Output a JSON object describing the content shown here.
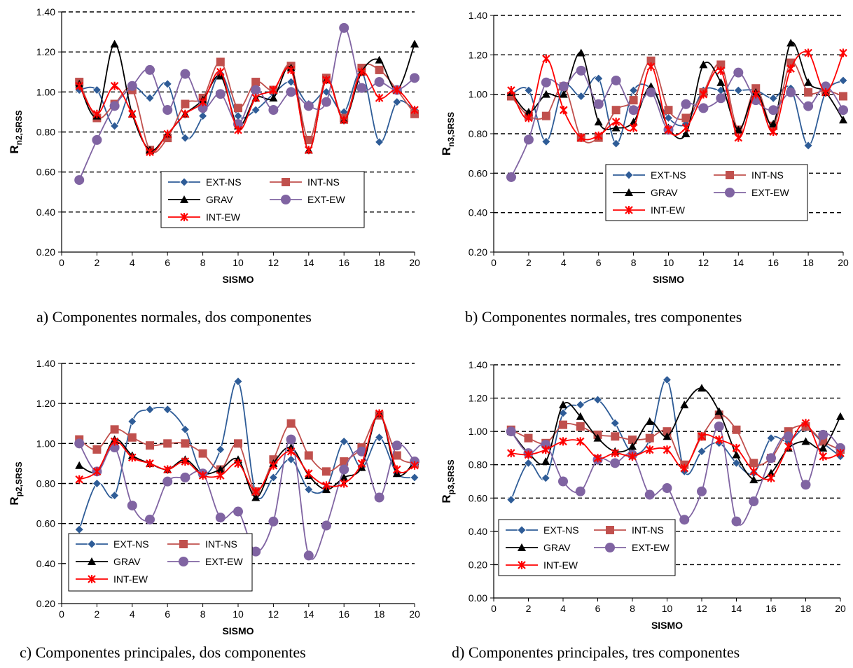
{
  "colors": {
    "EXT-NS": "#2E5C97",
    "INT-NS": "#C0504D",
    "GRAV": "#000000",
    "EXT-EW": "#8064A2",
    "INT-EW": "#FF0000"
  },
  "chart_data": [
    {
      "type": "line",
      "caption": "a) Componentes normales, dos componentes",
      "xlabel": "SISMO",
      "ylabel_main": "R",
      "ylabel_sub": "n2,SRSS",
      "xlim": [
        0,
        20
      ],
      "xticks": [
        "0",
        "2",
        "4",
        "6",
        "8",
        "10",
        "12",
        "14",
        "16",
        "18",
        "20"
      ],
      "ylim": [
        0.2,
        1.4
      ],
      "yticks": [
        "0.20",
        "0.40",
        "0.60",
        "0.80",
        "1.00",
        "1.20",
        "1.40"
      ],
      "legend_layout": "grid",
      "x": [
        1,
        2,
        3,
        4,
        5,
        6,
        7,
        8,
        9,
        10,
        11,
        12,
        13,
        14,
        15,
        16,
        17,
        18,
        19,
        20
      ],
      "series": [
        {
          "name": "EXT-NS",
          "marker": "diamond",
          "values": [
            1.01,
            1.01,
            0.83,
            1.02,
            0.97,
            1.04,
            0.77,
            0.88,
            1.09,
            0.88,
            0.91,
            0.99,
            1.05,
            0.94,
            1.0,
            0.9,
            1.1,
            0.75,
            0.95,
            0.91
          ]
        },
        {
          "name": "INT-NS",
          "marker": "square",
          "values": [
            1.05,
            0.87,
            0.94,
            1.01,
            0.71,
            0.77,
            0.94,
            0.97,
            1.15,
            0.92,
            1.05,
            1.01,
            1.13,
            0.76,
            1.07,
            0.87,
            1.12,
            1.11,
            1.01,
            0.89
          ]
        },
        {
          "name": "GRAV",
          "marker": "triangle",
          "values": [
            1.04,
            0.88,
            1.24,
            0.89,
            0.71,
            0.79,
            0.89,
            0.96,
            1.08,
            0.83,
            0.97,
            0.97,
            1.12,
            0.71,
            1.06,
            0.86,
            1.1,
            1.16,
            1.01,
            1.24
          ]
        },
        {
          "name": "EXT-EW",
          "marker": "circle",
          "values": [
            0.56,
            0.76,
            0.93,
            1.03,
            1.11,
            0.91,
            1.09,
            0.92,
            0.99,
            0.84,
            1.01,
            0.91,
            1.0,
            0.93,
            0.95,
            1.32,
            1.02,
            1.05,
            1.01,
            1.07
          ]
        },
        {
          "name": "INT-EW",
          "marker": "star",
          "values": [
            1.03,
            0.89,
            1.03,
            0.89,
            0.7,
            0.79,
            0.89,
            0.95,
            1.1,
            0.81,
            0.97,
            1.01,
            1.11,
            0.71,
            1.06,
            0.86,
            1.1,
            0.97,
            1.01,
            0.91
          ]
        }
      ]
    },
    {
      "type": "line",
      "caption": "b) Componentes normales, tres componentes",
      "xlabel": "SISMO",
      "ylabel_main": "R",
      "ylabel_sub": "n3,SRSS",
      "xlim": [
        0,
        20
      ],
      "xticks": [
        "0",
        "2",
        "4",
        "6",
        "8",
        "10",
        "12",
        "14",
        "16",
        "18",
        "20"
      ],
      "ylim": [
        0.2,
        1.4
      ],
      "yticks": [
        "0.20",
        "0.40",
        "0.60",
        "0.80",
        "1.00",
        "1.20",
        "1.40"
      ],
      "legend_layout": "grid",
      "x": [
        1,
        2,
        3,
        4,
        5,
        6,
        7,
        8,
        9,
        10,
        11,
        12,
        13,
        14,
        15,
        16,
        17,
        18,
        19,
        20
      ],
      "series": [
        {
          "name": "EXT-NS",
          "marker": "diamond",
          "values": [
            1.0,
            1.02,
            0.76,
            1.04,
            0.99,
            1.08,
            0.75,
            1.02,
            1.03,
            0.88,
            0.85,
            1.02,
            1.02,
            1.02,
            1.02,
            0.98,
            1.03,
            0.74,
            1.01,
            1.07
          ]
        },
        {
          "name": "INT-NS",
          "marker": "square",
          "values": [
            0.99,
            0.89,
            0.89,
            1.04,
            0.78,
            0.78,
            0.92,
            0.97,
            1.17,
            0.92,
            0.88,
            1.01,
            1.15,
            0.82,
            1.03,
            0.84,
            1.16,
            1.01,
            1.02,
            0.99
          ]
        },
        {
          "name": "GRAV",
          "marker": "triangle",
          "values": [
            1.01,
            0.91,
            1.0,
            1.0,
            1.21,
            0.86,
            0.83,
            0.86,
            1.04,
            0.83,
            0.8,
            1.15,
            1.06,
            0.82,
            1.01,
            0.85,
            1.26,
            1.06,
            1.01,
            0.87
          ]
        },
        {
          "name": "EXT-EW",
          "marker": "circle",
          "values": [
            0.58,
            0.77,
            1.06,
            1.04,
            1.12,
            0.95,
            1.07,
            0.92,
            1.01,
            0.82,
            0.95,
            0.93,
            0.98,
            1.11,
            0.97,
            0.92,
            1.01,
            0.94,
            1.04,
            0.92
          ]
        },
        {
          "name": "INT-EW",
          "marker": "star",
          "values": [
            1.02,
            0.88,
            1.18,
            0.92,
            0.78,
            0.79,
            0.86,
            0.83,
            1.14,
            0.82,
            0.83,
            1.0,
            1.12,
            0.78,
            1.0,
            0.81,
            1.13,
            1.21,
            1.01,
            1.21
          ]
        }
      ]
    },
    {
      "type": "line",
      "caption": "c) Componentes principales, dos componentes",
      "xlabel": "SISMO",
      "ylabel_main": "R",
      "ylabel_sub": "p2,SRSS",
      "xlim": [
        0,
        20
      ],
      "xticks": [
        "0",
        "2",
        "4",
        "6",
        "8",
        "10",
        "12",
        "14",
        "16",
        "18",
        "20"
      ],
      "ylim": [
        0.2,
        1.4
      ],
      "yticks": [
        "0.20",
        "0.40",
        "0.60",
        "0.80",
        "1.00",
        "1.20",
        "1.40"
      ],
      "legend_layout": "grid",
      "x": [
        1,
        2,
        3,
        4,
        5,
        6,
        7,
        8,
        9,
        10,
        11,
        12,
        13,
        14,
        15,
        16,
        17,
        18,
        19,
        20
      ],
      "series": [
        {
          "name": "EXT-NS",
          "marker": "diamond",
          "values": [
            0.57,
            0.8,
            0.74,
            1.11,
            1.17,
            1.17,
            1.07,
            0.85,
            0.97,
            1.31,
            0.75,
            0.83,
            0.92,
            0.77,
            0.78,
            1.01,
            0.88,
            1.03,
            0.85,
            0.83
          ]
        },
        {
          "name": "INT-NS",
          "marker": "square",
          "values": [
            1.02,
            0.97,
            1.07,
            1.03,
            0.99,
            1.0,
            1.0,
            0.95,
            0.87,
            1.0,
            0.76,
            0.92,
            1.1,
            0.94,
            0.86,
            0.91,
            0.98,
            1.14,
            0.94,
            0.9
          ]
        },
        {
          "name": "GRAV",
          "marker": "triangle",
          "values": [
            0.89,
            0.86,
            1.02,
            0.94,
            0.9,
            0.87,
            0.92,
            0.85,
            0.87,
            0.92,
            0.73,
            0.9,
            0.98,
            0.84,
            0.77,
            0.83,
            0.88,
            1.15,
            0.85,
            0.91
          ]
        },
        {
          "name": "EXT-EW",
          "marker": "circle",
          "values": [
            1.0,
            0.86,
            0.98,
            0.69,
            0.62,
            0.81,
            0.83,
            0.85,
            0.63,
            0.66,
            0.46,
            0.61,
            1.02,
            0.44,
            0.59,
            0.87,
            0.96,
            0.73,
            0.99,
            0.91
          ]
        },
        {
          "name": "INT-EW",
          "marker": "star",
          "values": [
            0.82,
            0.86,
            1.01,
            0.93,
            0.9,
            0.87,
            0.91,
            0.84,
            0.84,
            0.9,
            0.76,
            0.89,
            0.96,
            0.85,
            0.79,
            0.8,
            0.9,
            1.15,
            0.87,
            0.89
          ]
        }
      ]
    },
    {
      "type": "line",
      "caption": "d) Componentes principales, tres componentes",
      "xlabel": "SISMO",
      "ylabel_main": "R",
      "ylabel_sub": "p3,SRSS",
      "xlim": [
        0,
        20
      ],
      "xticks": [
        "0",
        "2",
        "4",
        "6",
        "8",
        "10",
        "12",
        "14",
        "16",
        "18",
        "20"
      ],
      "ylim": [
        0.0,
        1.4
      ],
      "yticks": [
        "0.00",
        "0.20",
        "0.40",
        "0.60",
        "0.80",
        "1.00",
        "1.20",
        "1.40"
      ],
      "legend_layout": "grid",
      "x": [
        1,
        2,
        3,
        4,
        5,
        6,
        7,
        8,
        9,
        10,
        11,
        12,
        13,
        14,
        15,
        16,
        17,
        18,
        19,
        20
      ],
      "series": [
        {
          "name": "EXT-NS",
          "marker": "diamond",
          "values": [
            0.59,
            0.81,
            0.72,
            1.11,
            1.16,
            1.19,
            1.05,
            0.87,
            0.95,
            1.31,
            0.76,
            0.88,
            0.93,
            0.81,
            0.75,
            0.96,
            0.94,
            1.02,
            0.93,
            0.85
          ]
        },
        {
          "name": "INT-NS",
          "marker": "square",
          "values": [
            1.01,
            0.96,
            0.93,
            1.04,
            1.03,
            0.98,
            0.97,
            0.95,
            0.96,
            1.0,
            0.8,
            0.97,
            1.1,
            1.01,
            0.81,
            0.84,
            1.0,
            1.03,
            0.94,
            0.89
          ]
        },
        {
          "name": "GRAV",
          "marker": "triangle",
          "values": [
            1.0,
            0.87,
            0.82,
            1.16,
            1.09,
            0.96,
            0.88,
            0.91,
            1.06,
            0.97,
            1.16,
            1.26,
            1.12,
            0.86,
            0.71,
            0.75,
            0.9,
            0.94,
            0.9,
            1.09
          ]
        },
        {
          "name": "EXT-EW",
          "marker": "circle",
          "values": [
            1.0,
            0.87,
            0.92,
            0.7,
            0.64,
            0.83,
            0.81,
            0.86,
            0.62,
            0.66,
            0.47,
            0.64,
            1.03,
            0.46,
            0.58,
            0.84,
            0.97,
            0.68,
            0.98,
            0.9
          ]
        },
        {
          "name": "INT-EW",
          "marker": "star",
          "values": [
            0.87,
            0.86,
            0.89,
            0.94,
            0.94,
            0.84,
            0.87,
            0.85,
            0.89,
            0.89,
            0.78,
            0.97,
            0.95,
            0.9,
            0.76,
            0.72,
            0.91,
            1.05,
            0.85,
            0.87
          ]
        }
      ]
    }
  ]
}
